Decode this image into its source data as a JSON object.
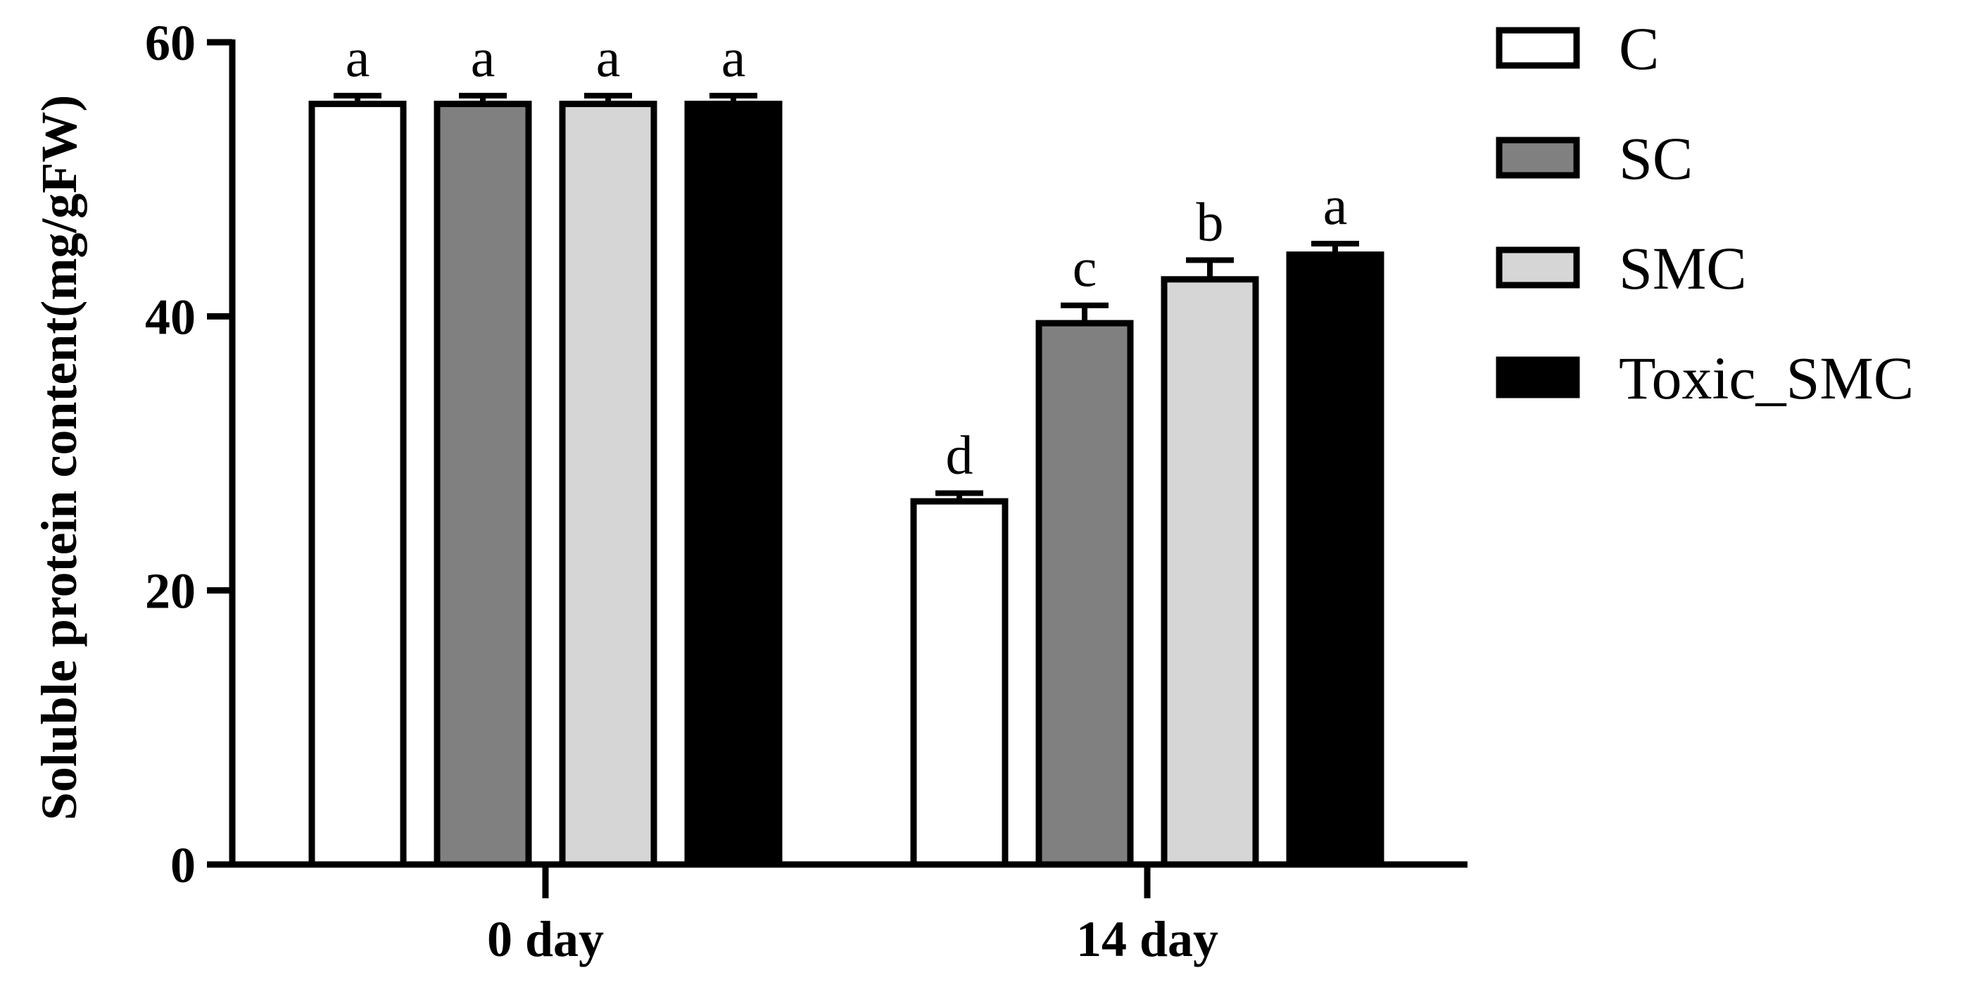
{
  "chart_data": {
    "type": "bar",
    "categories": [
      "0 day",
      "14 day"
    ],
    "series": [
      {
        "name": "C",
        "color": "#ffffff",
        "values": [
          55.5,
          26.5
        ],
        "errors": [
          0.6,
          0.6
        ],
        "labels": [
          "a",
          "d"
        ]
      },
      {
        "name": "SC",
        "color": "#808080",
        "values": [
          55.5,
          39.5
        ],
        "errors": [
          0.6,
          1.3
        ],
        "labels": [
          "a",
          "c"
        ]
      },
      {
        "name": "SMC",
        "color": "#d6d6d6",
        "values": [
          55.5,
          42.7
        ],
        "errors": [
          0.6,
          1.4
        ],
        "labels": [
          "a",
          "b"
        ]
      },
      {
        "name": "Toxic_SMC",
        "color": "#000000",
        "values": [
          55.5,
          44.5
        ],
        "errors": [
          0.6,
          0.8
        ],
        "labels": [
          "a",
          "a"
        ]
      }
    ],
    "title": "",
    "xlabel": "",
    "ylabel": "Soluble protein content(mg/gFW)",
    "ylim": [
      0,
      60
    ],
    "yticks": [
      "0",
      "20",
      "40",
      "60"
    ],
    "grid": false,
    "legend_position": "right"
  }
}
